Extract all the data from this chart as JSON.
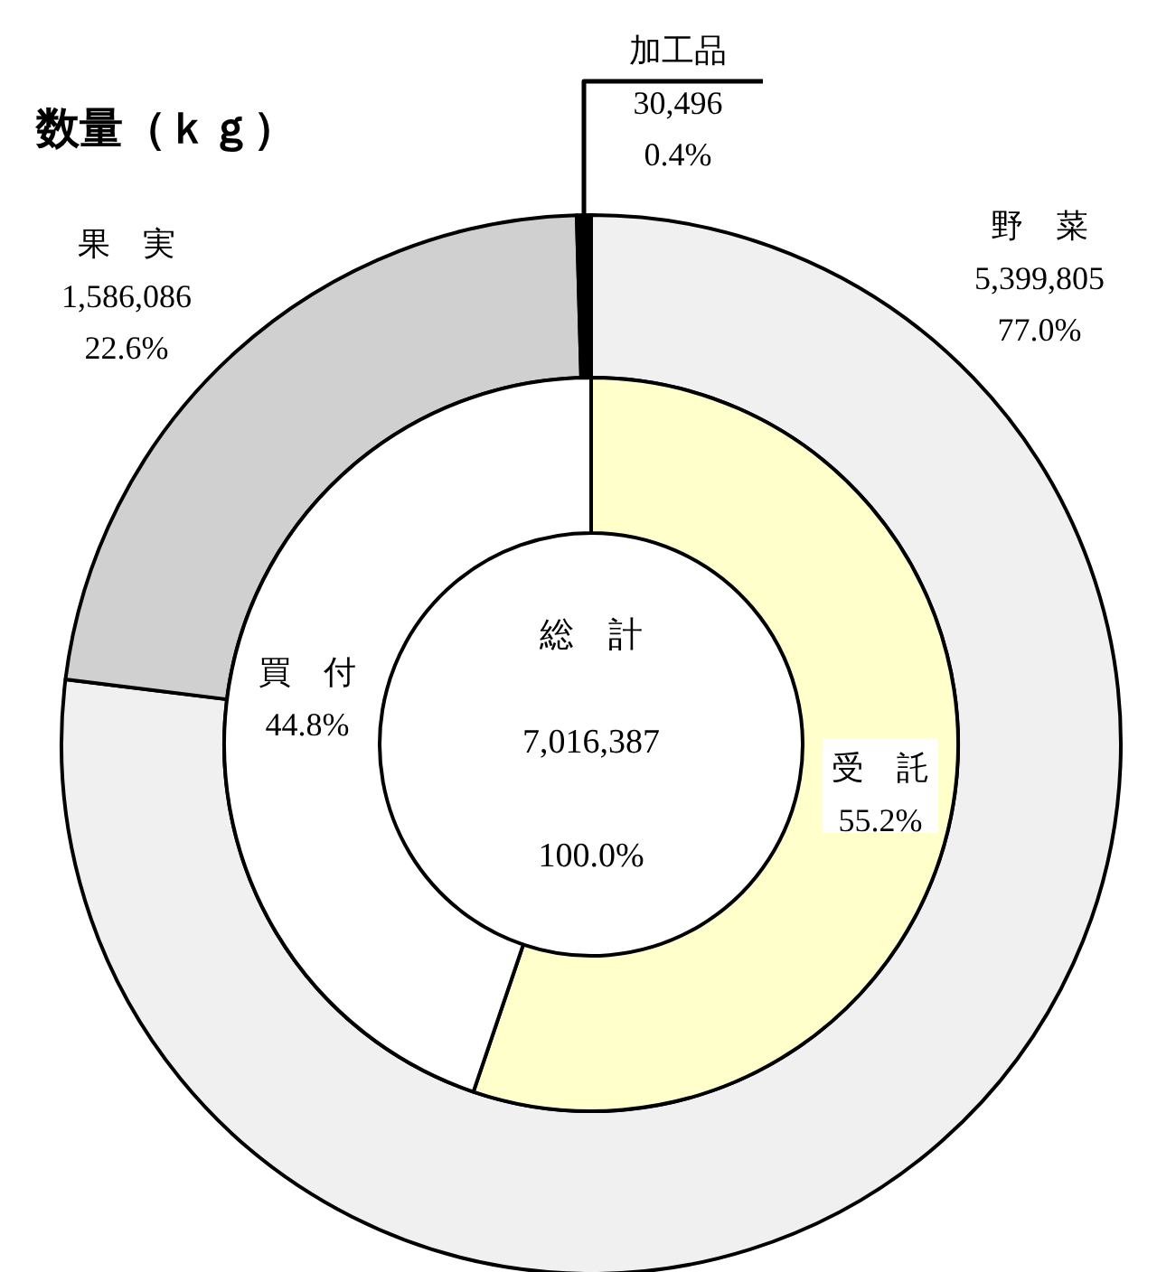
{
  "chart_data": [
    {
      "type": "donut",
      "title": "数量（ｋｇ）",
      "categories": [
        "野　菜",
        "果　実",
        "加工品"
      ],
      "values": [
        5399805,
        1586086,
        30496
      ],
      "value_labels": [
        "5,399,805\n77.0%",
        "1,586,086\n22.6%",
        "30,496\n0.4%"
      ],
      "colors": [
        "#f0f0f0",
        "#d0d0d0",
        "#000000"
      ]
    },
    {
      "type": "donut",
      "categories": [
        "受　託",
        "買　付"
      ],
      "values": [
        55.2,
        44.8
      ],
      "value_labels": [
        "55.2%",
        "44.8%"
      ],
      "colors": [
        "#ffffcc",
        "#ffffff"
      ],
      "annotations": [
        "総　計",
        "7,016,387",
        "100.0%"
      ]
    }
  ]
}
